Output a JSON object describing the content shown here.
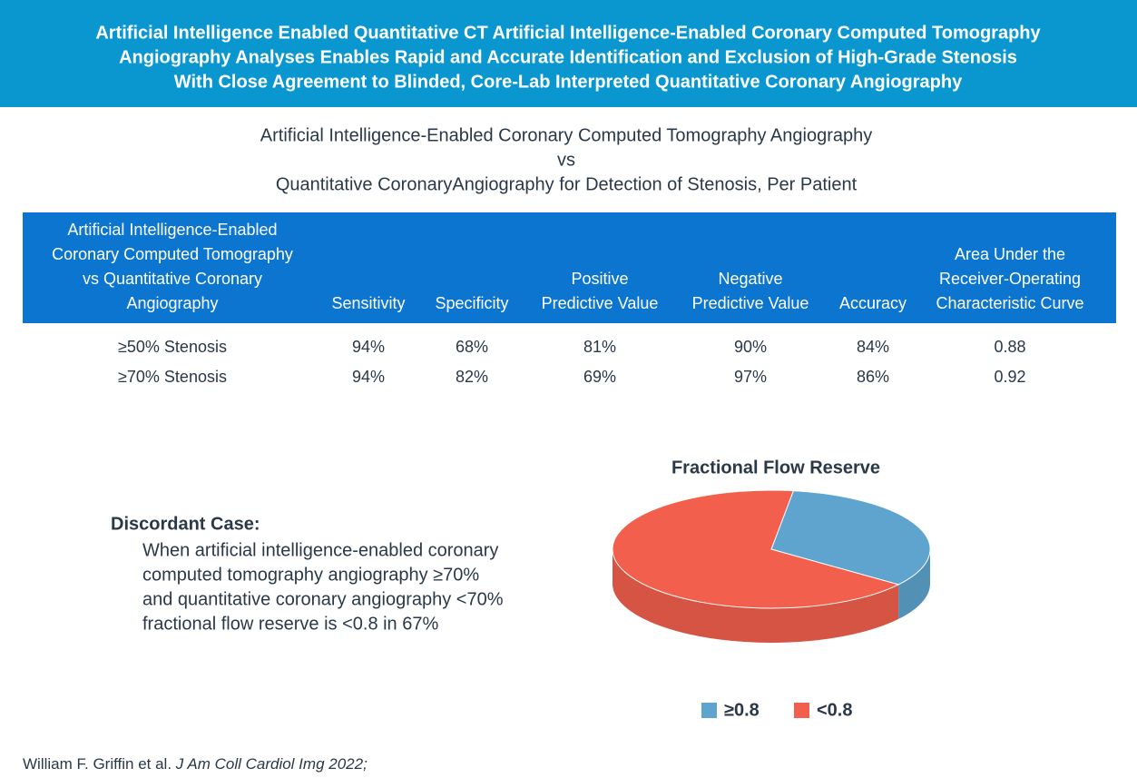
{
  "header": {
    "title_lines": [
      "Artificial Intelligence Enabled Quantitative CT Artificial Intelligence-Enabled Coronary Computed Tomography",
      "Angiography Analyses Enables Rapid and Accurate Identification and Exclusion of High-Grade Stenosis",
      "With Close Agreement to Blinded, Core-Lab Interpreted Quantitative Coronary Angiography"
    ]
  },
  "subtitle": {
    "lines": [
      "Artificial Intelligence-Enabled Coronary Computed Tomography Angiography",
      "vs",
      "Quantitative CoronaryAngiography for Detection of Stenosis, Per Patient"
    ]
  },
  "table": {
    "columns": [
      [
        "Artificial Intelligence-Enabled",
        "Coronary Computed Tomography",
        "vs Quantitative Coronary",
        "Angiography"
      ],
      [
        "Sensitivity"
      ],
      [
        "Specificity"
      ],
      [
        "Positive",
        "Predictive Value"
      ],
      [
        "Negative",
        "Predictive Value"
      ],
      [
        "Accuracy"
      ],
      [
        "Area Under the",
        "Receiver-Operating",
        "Characteristic Curve"
      ]
    ],
    "rows": [
      [
        "≥50% Stenosis",
        "94%",
        "68%",
        "81%",
        "90%",
        "84%",
        "0.88"
      ],
      [
        "≥70% Stenosis",
        "94%",
        "82%",
        "69%",
        "97%",
        "86%",
        "0.92"
      ]
    ]
  },
  "discordant": {
    "title": "Discordant Case:",
    "lines": [
      "When artificial intelligence-enabled coronary",
      "computed tomography angiography ≥70%",
      "and quantitative coronary angiography <70%",
      "fractional flow reserve is <0.8 in 67%"
    ]
  },
  "chart_data": {
    "type": "pie",
    "title": "Fractional Flow Reserve",
    "categories": [
      "≥0.8",
      "<0.8"
    ],
    "values": [
      33,
      67
    ],
    "colors": [
      "#5ea4cf",
      "#f2604d"
    ]
  },
  "citation": {
    "authors": "William F. Griffin et al. ",
    "journal": "J Am Coll Cardiol Img 2022;"
  }
}
